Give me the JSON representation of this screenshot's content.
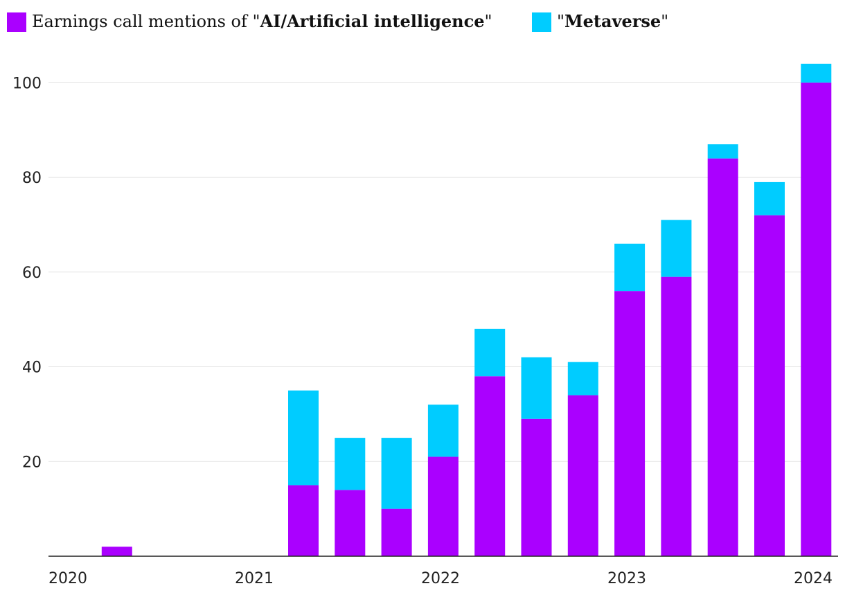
{
  "chart_data": {
    "type": "bar",
    "stacked": true,
    "title": "",
    "xlabel": "",
    "ylabel": "",
    "ylim": [
      0,
      104
    ],
    "yticks": [
      20,
      40,
      60,
      80,
      100
    ],
    "x_tick_labels": [
      "2020",
      "2021",
      "2022",
      "2023",
      "2024"
    ],
    "categories": [
      "Q1 2020",
      "Q2 2020",
      "Q3 2020",
      "Q4 2020",
      "Q1 2021",
      "Q2 2021",
      "Q3 2021",
      "Q4 2021",
      "Q1 2022",
      "Q2 2022",
      "Q3 2022",
      "Q4 2022",
      "Q1 2023",
      "Q2 2023",
      "Q3 2023",
      "Q4 2023",
      "Q1 2024"
    ],
    "series": [
      {
        "name": "AI/Artificial intelligence",
        "color": "#aa00ff",
        "values": [
          0,
          2,
          0,
          0,
          0,
          15,
          14,
          10,
          21,
          38,
          29,
          34,
          56,
          59,
          84,
          72,
          100
        ]
      },
      {
        "name": "Metaverse",
        "color": "#00ccff",
        "values": [
          0,
          0,
          0,
          0,
          0,
          20,
          11,
          15,
          11,
          10,
          13,
          7,
          10,
          12,
          3,
          7,
          4
        ]
      }
    ],
    "legend": {
      "position": "top-left",
      "ai_prefix": "Earnings call mentions of \"",
      "ai_term": "AI/Artificial intelligence",
      "ai_suffix": "\"",
      "meta_prefix": "\"",
      "meta_term": "Metaverse",
      "meta_suffix": "\""
    },
    "grid": true
  }
}
